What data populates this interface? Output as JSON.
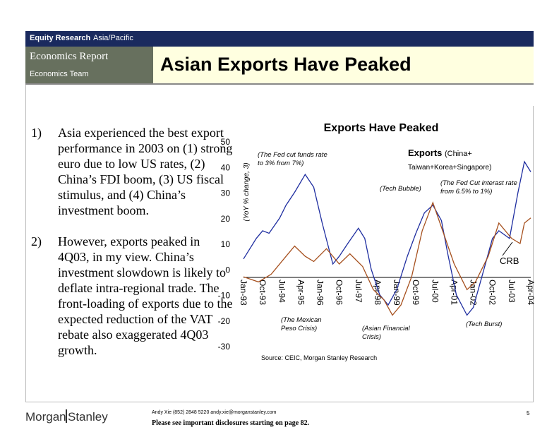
{
  "header": {
    "equity_research": "Equity Research",
    "region": "Asia/Pacific",
    "report": "Economics Report",
    "team": "Economics Team",
    "title": "Asian Exports Have Peaked"
  },
  "bullets": [
    {
      "num": "1)",
      "text": "Asia experienced the best export performance in 2003 on (1) strong euro due to low US rates, (2) China’s FDI boom, (3) US fiscal stimulus, and (4) China’s investment boom."
    },
    {
      "num": "2)",
      "text": "However, exports peaked in 4Q03, in my view. China’s investment slowdown is likely to deflate intra-regional trade. The front-loading of exports due to the expected reduction of the VAT rebate also exaggerated 4Q03 growth."
    }
  ],
  "chart_data": {
    "type": "line",
    "title": "Exports Have Peaked",
    "ylabel": "(YoY % change, 3)",
    "ylim": [
      -30,
      50
    ],
    "yticks": [
      "50",
      "40",
      "30",
      "20",
      "10",
      "0",
      "-10",
      "-20",
      "-30"
    ],
    "xrange": [
      "1993-01",
      "2004-04"
    ],
    "xticks": [
      "Jan-93",
      "Oct-93",
      "Jul-94",
      "Apr-95",
      "Jan-96",
      "Oct-96",
      "Jul-97",
      "Apr-98",
      "Jan-99",
      "Oct-99",
      "Jul-00",
      "Apr-01",
      "Jan-02",
      "Oct-02",
      "Jul-03",
      "Apr-04"
    ],
    "series": [
      {
        "name": "Exports (China+ Taiwan+Korea+Singapore)",
        "color": "#1f2ea0",
        "points": [
          [
            "1993-01",
            4
          ],
          [
            "1993-07",
            12
          ],
          [
            "1993-10",
            15
          ],
          [
            "1994-01",
            14
          ],
          [
            "1994-06",
            20
          ],
          [
            "1994-09",
            25
          ],
          [
            "1995-01",
            30
          ],
          [
            "1995-06",
            37
          ],
          [
            "1995-10",
            32
          ],
          [
            "1996-02",
            18
          ],
          [
            "1996-07",
            2
          ],
          [
            "1996-10",
            5
          ],
          [
            "1997-02",
            10
          ],
          [
            "1997-07",
            16
          ],
          [
            "1997-10",
            12
          ],
          [
            "1998-01",
            0
          ],
          [
            "1998-05",
            -10
          ],
          [
            "1998-09",
            -14
          ],
          [
            "1999-01",
            -8
          ],
          [
            "1999-06",
            5
          ],
          [
            "1999-10",
            14
          ],
          [
            "2000-02",
            22
          ],
          [
            "2000-06",
            25
          ],
          [
            "2000-10",
            19
          ],
          [
            "2001-01",
            6
          ],
          [
            "2001-05",
            -10
          ],
          [
            "2001-10",
            -18
          ],
          [
            "2002-01",
            -15
          ],
          [
            "2002-06",
            0
          ],
          [
            "2002-10",
            12
          ],
          [
            "2003-01",
            15
          ],
          [
            "2003-06",
            12
          ],
          [
            "2003-10",
            30
          ],
          [
            "2004-01",
            42
          ],
          [
            "2004-04",
            38
          ]
        ]
      },
      {
        "name": "CRB",
        "color": "#a6501e",
        "points": [
          [
            "1993-01",
            -3
          ],
          [
            "1993-08",
            -5
          ],
          [
            "1994-02",
            -2
          ],
          [
            "1994-09",
            5
          ],
          [
            "1995-01",
            9
          ],
          [
            "1995-06",
            5
          ],
          [
            "1995-10",
            3
          ],
          [
            "1996-04",
            8
          ],
          [
            "1996-10",
            2
          ],
          [
            "1997-03",
            6
          ],
          [
            "1997-09",
            1
          ],
          [
            "1998-02",
            -8
          ],
          [
            "1998-07",
            -12
          ],
          [
            "1998-11",
            -18
          ],
          [
            "1999-03",
            -14
          ],
          [
            "1999-08",
            -3
          ],
          [
            "2000-01",
            15
          ],
          [
            "2000-06",
            26
          ],
          [
            "2000-11",
            14
          ],
          [
            "2001-04",
            2
          ],
          [
            "2001-10",
            -8
          ],
          [
            "2002-02",
            -5
          ],
          [
            "2002-08",
            5
          ],
          [
            "2003-01",
            18
          ],
          [
            "2003-07",
            12
          ],
          [
            "2003-11",
            10
          ],
          [
            "2004-01",
            18
          ],
          [
            "2004-04",
            20
          ]
        ]
      }
    ],
    "annotations": [
      "(The Fed cut funds rate to 3% from 7%)",
      "(Tech Bubble)",
      "(The Fed Cut interast rate from 6.5% to 1%)",
      "(The Mexican Peso Crisis)",
      "(Asian Financial Crisis)",
      "(Tech Burst)"
    ],
    "source": "Source: CEIC, Morgan Stanley Research"
  },
  "footer": {
    "contact": "Andy Xie (852) 2848 5220 andy.xie@morganstanley.com",
    "disclosure": "Please see important disclosures starting on page 82.",
    "page": "5",
    "logo": "MorganStanley"
  }
}
